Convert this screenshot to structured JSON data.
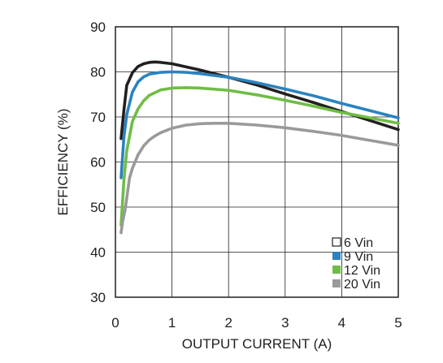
{
  "chart_data": {
    "type": "line",
    "title": "",
    "xlabel": "OUTPUT CURRENT (A)",
    "ylabel": "EFFICIENCY (%)",
    "xlim": [
      0,
      5
    ],
    "ylim": [
      30,
      90
    ],
    "x_ticks": [
      0,
      1,
      2,
      3,
      4,
      5
    ],
    "y_ticks": [
      30,
      40,
      50,
      60,
      70,
      80,
      90
    ],
    "grid": true,
    "legend_position": "bottom-right",
    "series": [
      {
        "name": "6 Vin",
        "color": "#231f20",
        "legend_marker": "hollow-square",
        "x": [
          0.1,
          0.15,
          0.2,
          0.3,
          0.4,
          0.5,
          0.6,
          0.7,
          0.8,
          1.0,
          1.25,
          1.5,
          2.0,
          2.5,
          3.0,
          3.5,
          4.0,
          4.5,
          5.0
        ],
        "y": [
          65.2,
          71.5,
          77.0,
          79.8,
          81.2,
          81.8,
          82.1,
          82.2,
          82.1,
          81.8,
          81.1,
          80.4,
          78.8,
          77.1,
          75.1,
          73.2,
          71.2,
          69.2,
          67.2
        ]
      },
      {
        "name": "9 Vin",
        "color": "#2a83c0",
        "legend_marker": "square",
        "x": [
          0.1,
          0.15,
          0.2,
          0.3,
          0.4,
          0.5,
          0.6,
          0.8,
          1.0,
          1.25,
          1.5,
          2.0,
          2.5,
          3.0,
          3.5,
          4.0,
          4.5,
          5.0
        ],
        "y": [
          56.5,
          65.5,
          70.5,
          75.5,
          77.8,
          78.9,
          79.5,
          79.9,
          80.0,
          79.9,
          79.6,
          78.8,
          77.6,
          76.2,
          74.7,
          73.0,
          71.4,
          69.8
        ]
      },
      {
        "name": "12 Vin",
        "color": "#6ebd45",
        "legend_marker": "square",
        "x": [
          0.1,
          0.15,
          0.2,
          0.3,
          0.4,
          0.5,
          0.6,
          0.8,
          1.0,
          1.25,
          1.5,
          2.0,
          2.5,
          3.0,
          3.5,
          4.0,
          4.5,
          5.0
        ],
        "y": [
          46.0,
          56.0,
          62.5,
          69.0,
          71.8,
          73.6,
          74.8,
          76.0,
          76.4,
          76.5,
          76.4,
          75.9,
          74.9,
          73.7,
          72.4,
          71.0,
          69.8,
          68.6
        ]
      },
      {
        "name": "20 Vin",
        "color": "#9a9a9a",
        "legend_marker": "square",
        "x": [
          0.1,
          0.13,
          0.17,
          0.2,
          0.25,
          0.3,
          0.4,
          0.5,
          0.6,
          0.7,
          0.8,
          1.0,
          1.25,
          1.5,
          1.75,
          2.0,
          2.5,
          3.0,
          3.5,
          4.0,
          4.5,
          5.0
        ],
        "y": [
          44.3,
          47.0,
          49.3,
          52.0,
          56.5,
          58.6,
          61.6,
          63.6,
          64.9,
          65.8,
          66.5,
          67.5,
          68.2,
          68.5,
          68.6,
          68.6,
          68.2,
          67.6,
          66.8,
          65.9,
          64.8,
          63.7
        ]
      }
    ]
  }
}
